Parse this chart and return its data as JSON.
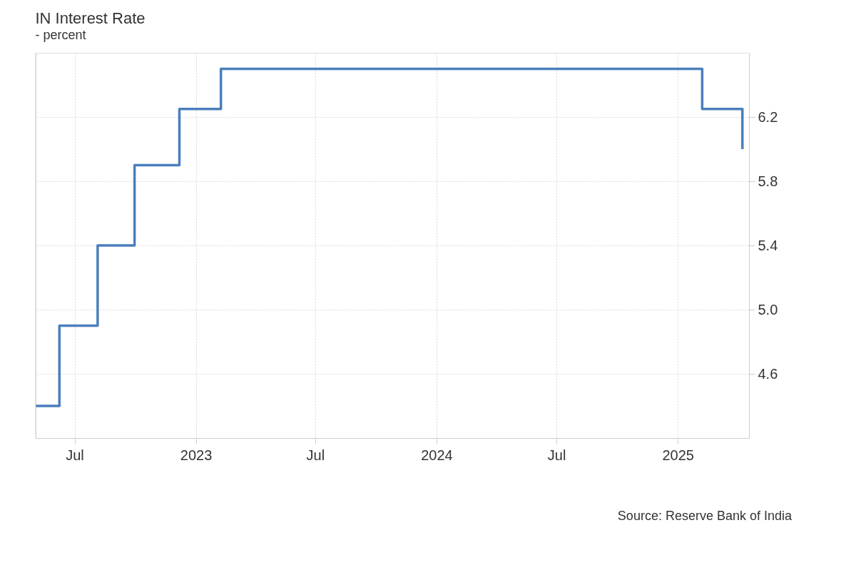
{
  "chart_data": {
    "type": "step",
    "title": "IN Interest Rate",
    "subtitle": "- percent",
    "x": [
      "2022-05-03",
      "2022-06-08",
      "2022-08-05",
      "2022-09-30",
      "2022-12-07",
      "2023-02-08",
      "2025-02-07",
      "2025-04-09"
    ],
    "series": [
      {
        "color": "#4a7fbd",
        "values": [
          4.4,
          4.9,
          5.4,
          5.9,
          6.25,
          6.5,
          6.25,
          6.0
        ]
      }
    ],
    "xlim": [
      "2022-05-03",
      "2025-04-19"
    ],
    "xticks": [
      {
        "value": "2022-07-01",
        "label": "Jul"
      },
      {
        "value": "2023-01-01",
        "label": "2023"
      },
      {
        "value": "2023-07-01",
        "label": "Jul"
      },
      {
        "value": "2024-01-01",
        "label": "2024"
      },
      {
        "value": "2024-07-01",
        "label": "Jul"
      },
      {
        "value": "2025-01-01",
        "label": "2025"
      }
    ],
    "ylim": [
      4.2,
      6.6
    ],
    "yticks": [
      {
        "value": 4.6,
        "label": "4.6"
      },
      {
        "value": 5,
        "label": "5.0"
      },
      {
        "value": 5.4,
        "label": "5.4"
      },
      {
        "value": 5.8,
        "label": "5.8"
      },
      {
        "value": 6.2,
        "label": "6.2"
      }
    ],
    "grid": true,
    "marker": "none",
    "line_style": "solid",
    "annotations": [
      "Source: Reserve Bank of India"
    ]
  }
}
